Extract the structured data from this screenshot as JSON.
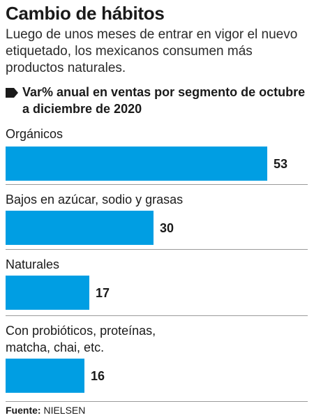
{
  "header": {
    "title": "Cambio de hábitos",
    "subtitle": "Luego de unos meses de entrar en vigor el nuevo etiquetado, los mexicanos consumen más productos naturales.",
    "measure": "Var% anual en ventas por segmento de octubre a diciembre de 2020"
  },
  "chart_data": {
    "type": "bar",
    "orientation": "horizontal",
    "categories": [
      "Orgánicos",
      "Bajos en azúcar, sodio y grasas",
      "Naturales",
      "Con probióticos, proteínas, matcha, chai, etc."
    ],
    "values": [
      53,
      30,
      17,
      16
    ],
    "value_labels": [
      "53",
      "30",
      "17",
      "16"
    ],
    "bar_color": "#009ee3",
    "grid": false
  },
  "source": {
    "label": "Fuente:",
    "text": "NIELSEN"
  }
}
